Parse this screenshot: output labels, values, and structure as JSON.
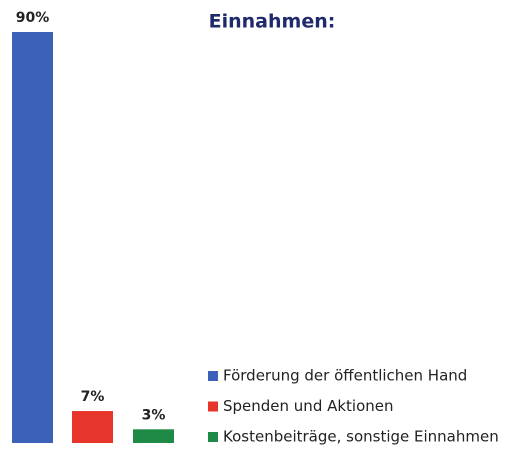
{
  "chart_data": {
    "type": "bar",
    "title": "Einnahmen:",
    "categories": [
      "Förderung der öffentlichen Hand",
      "Spenden und Aktionen",
      "Kostenbeiträge, sonstige Einnahmen"
    ],
    "values": [
      90,
      7,
      3
    ],
    "value_labels": [
      "90%",
      "7%",
      "3%"
    ],
    "colors": [
      "#3b62b8",
      "#e8352b",
      "#1f8a45"
    ],
    "legend": "bottom-right"
  }
}
